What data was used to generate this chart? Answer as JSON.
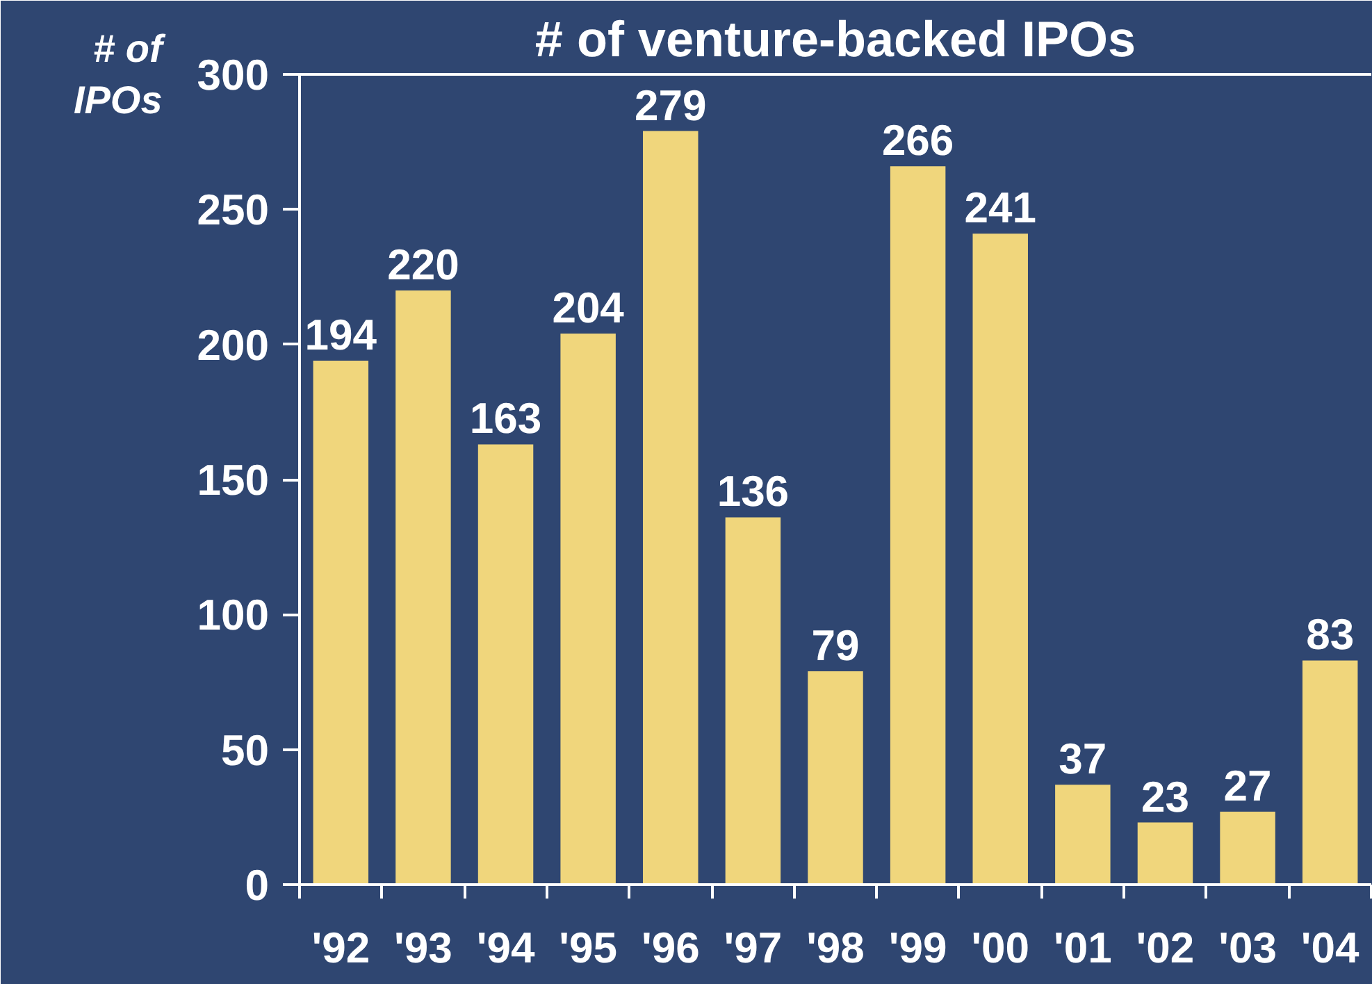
{
  "chart_data": {
    "type": "bar",
    "title": "# of venture-backed IPOs",
    "ylabel": "# of IPOs",
    "categories": [
      "'92",
      "'93",
      "'94",
      "'95",
      "'96",
      "'97",
      "'98",
      "'99",
      "'00",
      "'01",
      "'02",
      "'03",
      "'04"
    ],
    "values": [
      194,
      220,
      163,
      204,
      279,
      136,
      79,
      266,
      241,
      37,
      23,
      27,
      83
    ],
    "color": "#f0d67c",
    "ylim": [
      0,
      300
    ],
    "yticks": [
      0,
      50,
      100,
      150,
      200,
      250,
      300
    ],
    "data_labels": true,
    "grid": false
  }
}
